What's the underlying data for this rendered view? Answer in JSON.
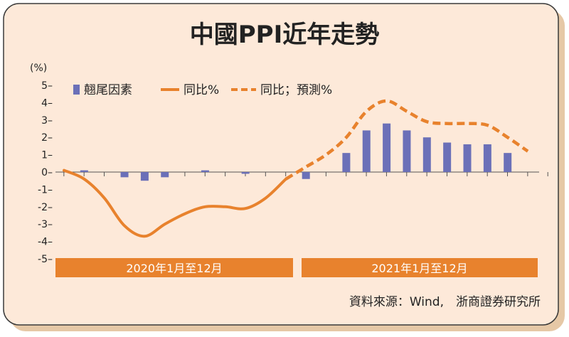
{
  "colors": {
    "panel_bg": "#fde9d9",
    "panel_border": "#3a3a3a",
    "shadow": "#e6c8a6",
    "bar": "#6b70b8",
    "line": "#e8822d",
    "band": "#e8822d",
    "band_text": "#ffffff",
    "text": "#222222"
  },
  "chart_data": {
    "type": "bar+line",
    "title": "中國PPI近年走勢",
    "unit_label": "(%)",
    "ylim": [
      -5,
      5
    ],
    "yticks": [
      5,
      4,
      3,
      2,
      1,
      0,
      -1,
      -2,
      -3,
      -4,
      -5
    ],
    "ytick_labels": [
      "5–",
      "4–",
      "3–",
      "2–",
      "1–",
      "0–",
      "-1–",
      "-2–",
      "-3–",
      "-4–",
      "-5–"
    ],
    "legend": {
      "placement": "top-left",
      "items": [
        {
          "key": "bar",
          "label": "翹尾因素"
        },
        {
          "key": "line",
          "label": "同比%"
        },
        {
          "key": "forecast",
          "label": "同比；預測%"
        }
      ]
    },
    "periods": [
      {
        "label": "2020年1月至12月",
        "start": 0,
        "end": 11
      },
      {
        "label": "2021年1月至12月",
        "start": 12,
        "end": 23
      }
    ],
    "series": [
      {
        "name": "翹尾因素",
        "type": "bar",
        "x": [
          1,
          3,
          4,
          5,
          7,
          9,
          12,
          14,
          15,
          16,
          17,
          18,
          19,
          20,
          21,
          22
        ],
        "values": [
          0.1,
          -0.3,
          -0.5,
          -0.3,
          0.1,
          -0.1,
          -0.4,
          1.1,
          2.4,
          2.8,
          2.4,
          2.0,
          1.7,
          1.6,
          1.6,
          1.1
        ]
      },
      {
        "name": "同比%",
        "type": "line",
        "x": [
          0,
          1,
          2,
          3,
          4,
          5,
          6,
          7,
          8,
          9,
          10,
          11
        ],
        "values": [
          0.1,
          -0.4,
          -1.5,
          -3.1,
          -3.7,
          -3.0,
          -2.4,
          -2.0,
          -2.0,
          -2.1,
          -1.5,
          -0.4
        ]
      },
      {
        "name": "同比；預測%",
        "type": "line-dashed",
        "x": [
          11,
          12,
          13,
          14,
          15,
          16,
          17,
          18,
          19,
          20,
          21,
          22,
          23
        ],
        "values": [
          -0.4,
          0.3,
          1.0,
          2.0,
          3.5,
          4.1,
          3.5,
          2.9,
          2.8,
          2.8,
          2.7,
          2.0,
          1.2
        ]
      }
    ]
  },
  "source_text": "資料來源：Wind,　浙商證券研究所"
}
